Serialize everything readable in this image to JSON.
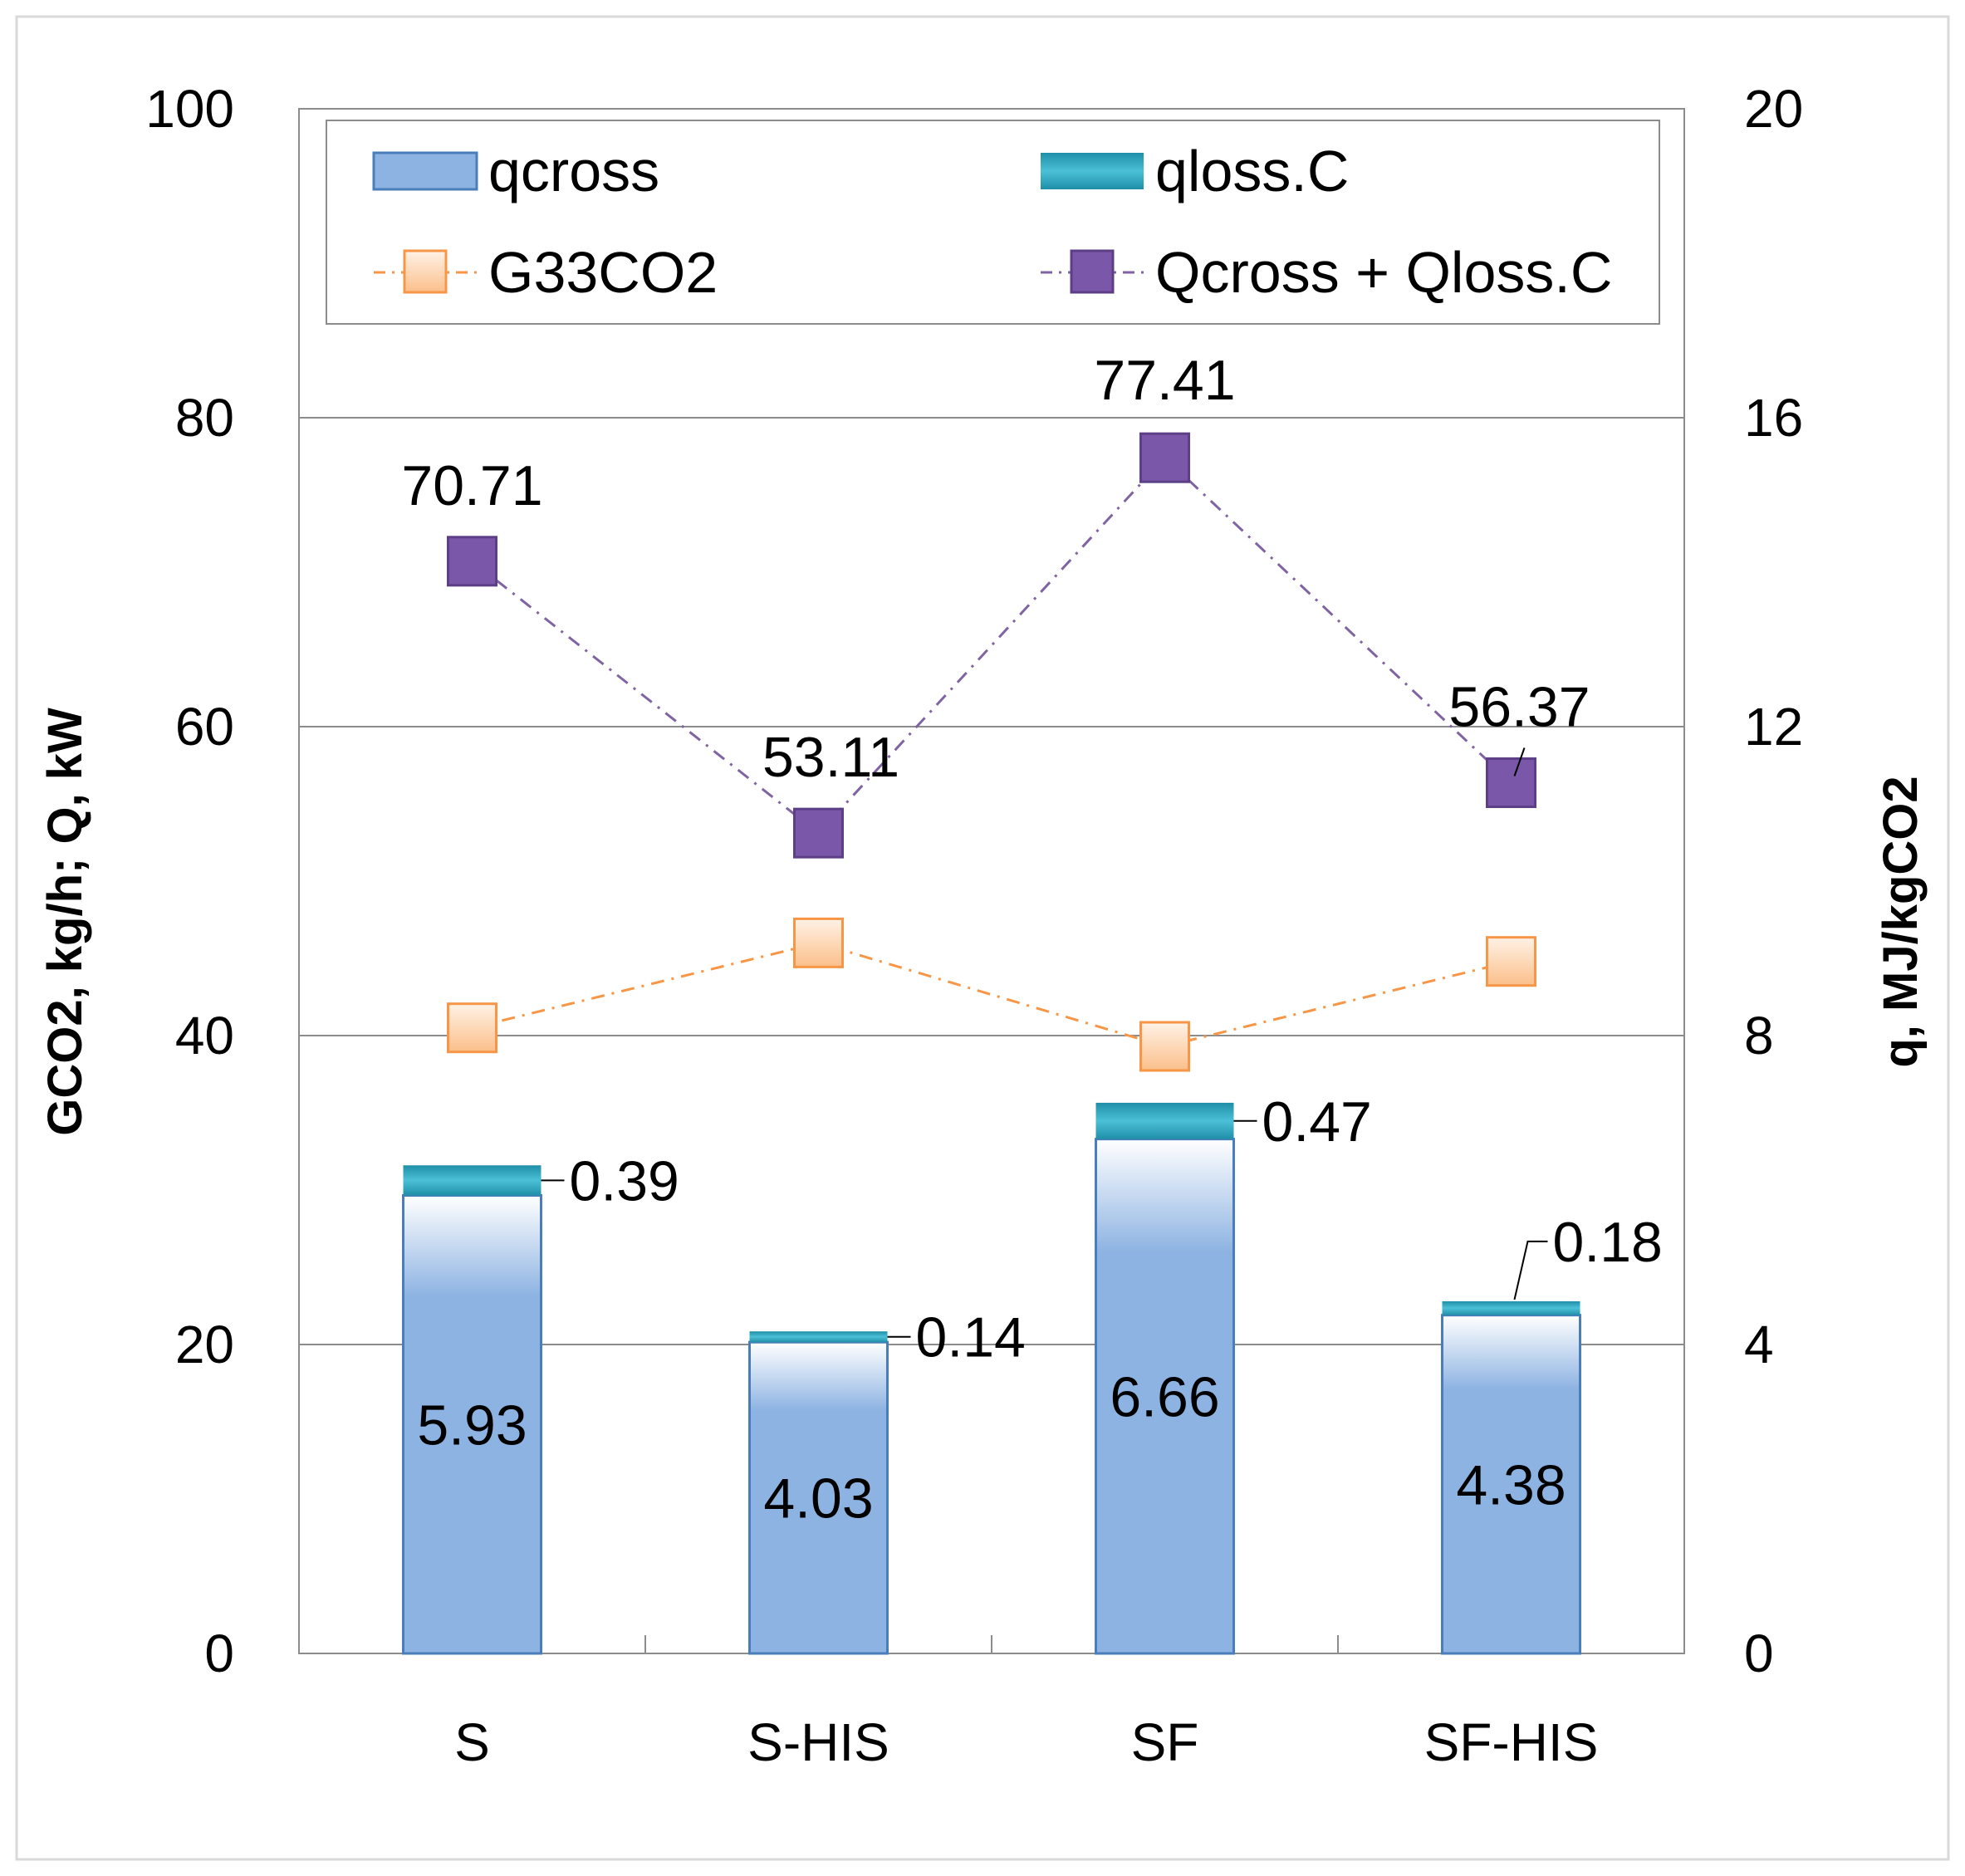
{
  "chart_data": {
    "type": "bar",
    "categories": [
      "S",
      "S-HIS",
      "SF",
      "SF-HIS"
    ],
    "left_axis": {
      "label": "GCO2, kg/h; Q, kW",
      "range": [
        0,
        100
      ],
      "ticks": [
        "0",
        "20",
        "40",
        "60",
        "80",
        "100"
      ]
    },
    "right_axis": {
      "label": "q, MJ/kgCO2",
      "range": [
        0,
        20
      ],
      "ticks": [
        "0",
        "4",
        "8",
        "12",
        "16",
        "20"
      ]
    },
    "series": [
      {
        "name": "qcross",
        "kind": "stacked-bar",
        "axis": "right",
        "values": [
          5.93,
          4.03,
          6.66,
          4.38
        ],
        "labels": [
          "5.93",
          "4.03",
          "6.66",
          "4.38"
        ]
      },
      {
        "name": "qloss.C",
        "kind": "stacked-bar",
        "axis": "right",
        "values": [
          0.39,
          0.14,
          0.47,
          0.18
        ],
        "labels": [
          "0.39",
          "0.14",
          "0.47",
          "0.18"
        ]
      },
      {
        "name": "G33CO2",
        "kind": "line",
        "axis": "left",
        "values": [
          40.5,
          46.0,
          39.3,
          44.8
        ]
      },
      {
        "name": "Qcross + Qloss.C",
        "kind": "line",
        "axis": "left",
        "values": [
          70.71,
          53.11,
          77.41,
          56.37
        ],
        "labels": [
          "70.71",
          "53.11",
          "77.41",
          "56.37"
        ]
      }
    ],
    "grid": true,
    "legend_position": "top"
  },
  "colors": {
    "qcross": "#8db3e2",
    "qcross_border": "#4a7ebb",
    "qloss": "#31a7bf",
    "g33": "#f79646",
    "g33_fill": "#fcd5b4",
    "qtotal": "#8064a2",
    "qtotal_fill": "#7a57a8"
  }
}
